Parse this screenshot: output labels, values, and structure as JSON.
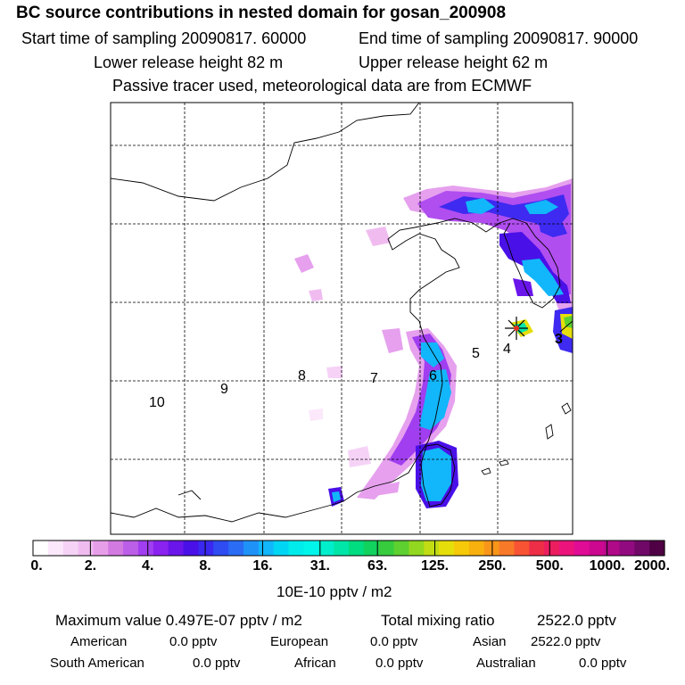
{
  "header": {
    "title": "BC  source contributions in nested domain for gosan_200908",
    "start_time": "Start time of sampling 20090817. 60000",
    "end_time": "End time of sampling 20090817. 90000",
    "lower_release": "Lower release height   82 m",
    "upper_release": "Upper release height   62 m",
    "tracer_note": "Passive tracer used, meteorological data are from ECMWF"
  },
  "map": {
    "region_labels": [
      "10",
      "9",
      "8",
      "7",
      "6",
      "5",
      "4",
      "3"
    ],
    "receptor_marker": "asterisk",
    "colors": {
      "coast": "#000000",
      "grid": "#000000"
    }
  },
  "colorbar": {
    "tick_labels": [
      "0.",
      "2.",
      "4.",
      "8.",
      "16.",
      "31.",
      "63.",
      "125.",
      "250.",
      "500.",
      "1000.",
      "2000."
    ],
    "units": "10E-10 pptv / m2",
    "colors": [
      "#ffffff",
      "#fbe8fb",
      "#f6d3f6",
      "#f0bcf0",
      "#e79ee9",
      "#d27ae0",
      "#bb5ee8",
      "#a03ef0",
      "#8a22f0",
      "#6a16ea",
      "#4a10e8",
      "#3a28f0",
      "#2e4cf2",
      "#2a6cf4",
      "#1f92f8",
      "#12b6fa",
      "#00d6f4",
      "#00ecec",
      "#00f6ea",
      "#00eecc",
      "#00e6a8",
      "#00dc80",
      "#12d25e",
      "#36cc3e",
      "#5ed030",
      "#92d820",
      "#c2dc14",
      "#e6de0a",
      "#f6ca08",
      "#f8b00e",
      "#f8961a",
      "#f87a28",
      "#f85434",
      "#ee2e46",
      "#ec1e60",
      "#ec147c",
      "#e00c96",
      "#cc0890",
      "#b00a88",
      "#920a80",
      "#700868",
      "#500044"
    ]
  },
  "footer": {
    "max_value": "Maximum value  0.497E-07 pptv / m2",
    "total_mixing": "Total mixing ratio",
    "total_value": "2522.0 pptv",
    "american_label": "American",
    "american_value": "0.0 pptv",
    "european_label": "European",
    "european_value": "0.0 pptv",
    "asian_label": "Asian",
    "asian_value": "2522.0 pptv",
    "south_american_label": "South American",
    "south_american_value": "0.0 pptv",
    "african_label": "African",
    "african_value": "0.0 pptv",
    "australian_label": "Australian",
    "australian_value": "0.0 pptv"
  }
}
